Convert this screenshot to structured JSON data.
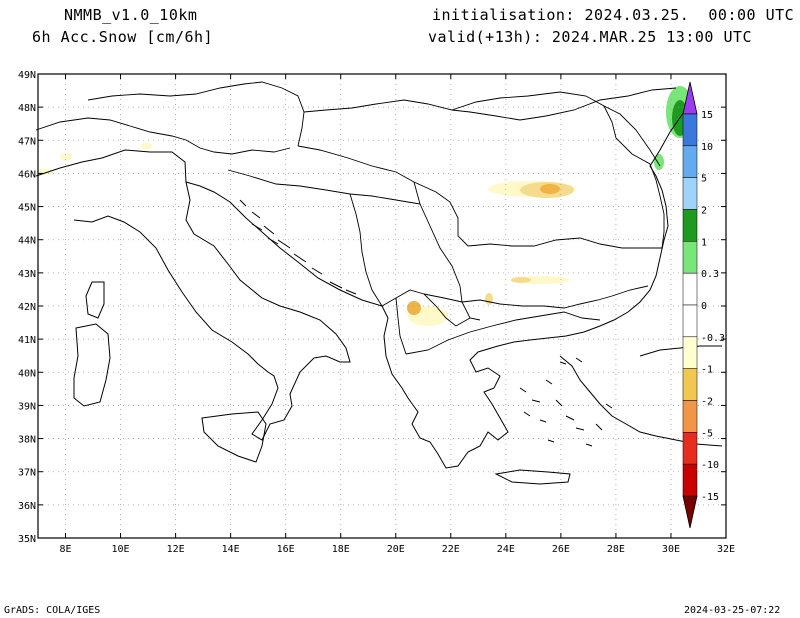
{
  "header": {
    "model": "NMMB_v1.0_10km",
    "field": "6h Acc.Snow [cm/6h]",
    "init": "initialisation: 2024.03.25.  00:00 UTC",
    "valid": "valid(+13h): 2024.MAR.25 13:00 UTC"
  },
  "footer": {
    "software": "GrADS: COLA/IGES",
    "timestamp": "2024-03-25-07:22"
  },
  "axes": {
    "lat_labels": [
      "49N",
      "48N",
      "47N",
      "46N",
      "45N",
      "44N",
      "43N",
      "42N",
      "41N",
      "40N",
      "39N",
      "38N",
      "37N",
      "36N",
      "35N"
    ],
    "lon_labels": [
      "8E",
      "10E",
      "12E",
      "14E",
      "16E",
      "18E",
      "20E",
      "22E",
      "24E",
      "26E",
      "28E",
      "30E",
      "32E"
    ],
    "lat_values": [
      49,
      48,
      47,
      46,
      45,
      44,
      43,
      42,
      41,
      40,
      39,
      38,
      37,
      36,
      35
    ],
    "lon_values": [
      8,
      10,
      12,
      14,
      16,
      18,
      20,
      22,
      24,
      26,
      28,
      30,
      32
    ],
    "lon_range": [
      7,
      32
    ],
    "lat_range": [
      35,
      49
    ]
  },
  "legend": {
    "labels": [
      "15",
      "10",
      "5",
      "2",
      "1",
      "0.3",
      "0",
      "-0.3",
      "-1",
      "-2",
      "-5",
      "-10",
      "-15"
    ],
    "colors": [
      "#9b3cf0",
      "#3c78dc",
      "#64aaf0",
      "#a0d2fa",
      "#1e9b1e",
      "#78e678",
      "#ffffff",
      "#ffffd2",
      "#f0c850",
      "#f09646",
      "#e62d1e",
      "#c80000",
      "#780000"
    ]
  },
  "snow_colors": {
    "light_yellow": "#fff8c8",
    "yellow": "#f5dc8c",
    "orange": "#f0b446",
    "light_green": "#78e678",
    "dark_green": "#1e9b1e"
  }
}
